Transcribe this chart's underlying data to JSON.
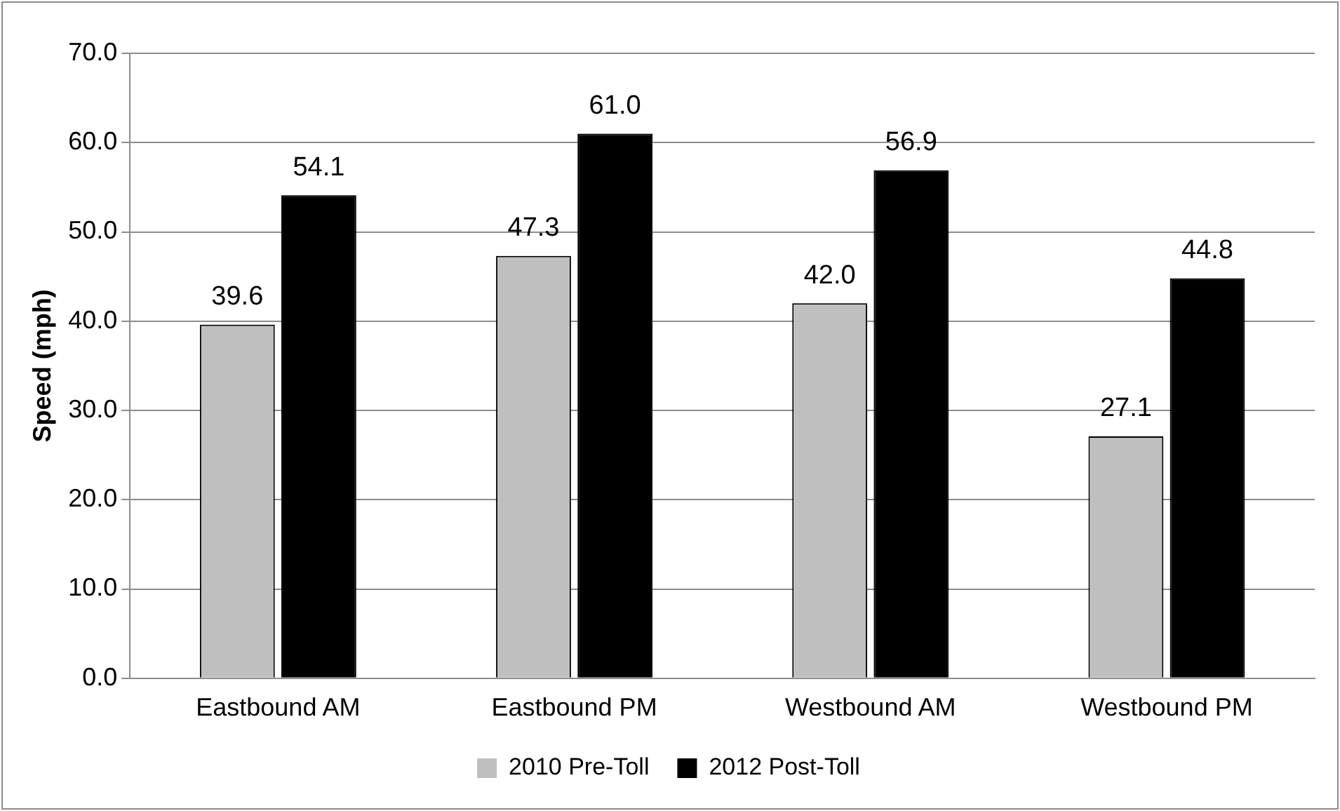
{
  "chart_data": {
    "type": "bar",
    "ylabel": "Speed (mph)",
    "categories": [
      "Eastbound AM",
      "Eastbound PM",
      "Westbound AM",
      "Westbound PM"
    ],
    "series": [
      {
        "name": "2010 Pre-Toll",
        "color": "#bfbfbf",
        "values": [
          39.6,
          47.3,
          42.0,
          27.1
        ],
        "value_labels": [
          "39.6",
          "47.3",
          "42.0",
          "27.1"
        ]
      },
      {
        "name": "2012 Post-Toll",
        "color": "#000000",
        "values": [
          54.1,
          61.0,
          56.9,
          44.8
        ],
        "value_labels": [
          "54.1",
          "61.0",
          "56.9",
          "44.8"
        ]
      }
    ],
    "ylim": [
      0,
      70
    ],
    "yticks": [
      {
        "value": 0,
        "label": "0.0"
      },
      {
        "value": 10,
        "label": "10.0"
      },
      {
        "value": 20,
        "label": "20.0"
      },
      {
        "value": 30,
        "label": "30.0"
      },
      {
        "value": 40,
        "label": "40.0"
      },
      {
        "value": 50,
        "label": "50.0"
      },
      {
        "value": 60,
        "label": "60.0"
      },
      {
        "value": 70,
        "label": "70.0"
      }
    ],
    "grid": "y",
    "legend": "bottom"
  }
}
